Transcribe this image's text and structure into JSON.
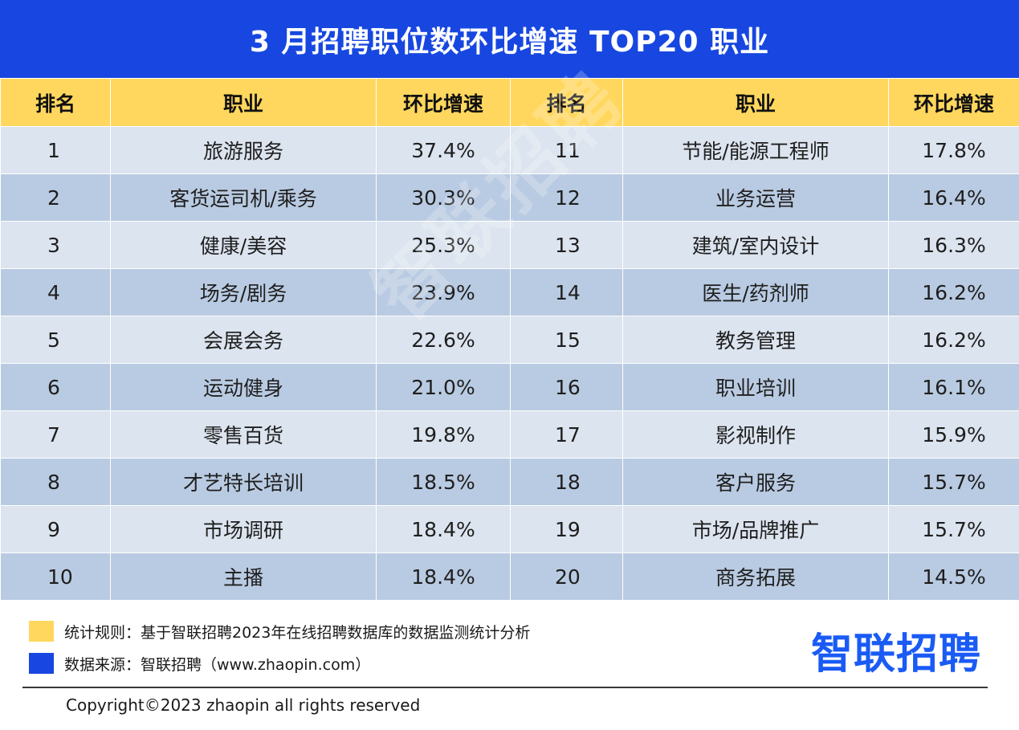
{
  "title": "3 月招聘职位数环比增速 TOP20 职业",
  "table": {
    "headers": [
      "排名",
      "职业",
      "环比增速",
      "排名",
      "职业",
      "环比增速"
    ],
    "rows": [
      {
        "rank_l": "1",
        "job_l": "旅游服务",
        "growth_l": "37.4%",
        "rank_r": "11",
        "job_r": "节能/能源工程师",
        "growth_r": "17.8%"
      },
      {
        "rank_l": "2",
        "job_l": "客货运司机/乘务",
        "growth_l": "30.3%",
        "rank_r": "12",
        "job_r": "业务运营",
        "growth_r": "16.4%"
      },
      {
        "rank_l": "3",
        "job_l": "健康/美容",
        "growth_l": "25.3%",
        "rank_r": "13",
        "job_r": "建筑/室内设计",
        "growth_r": "16.3%"
      },
      {
        "rank_l": "4",
        "job_l": "场务/剧务",
        "growth_l": "23.9%",
        "rank_r": "14",
        "job_r": "医生/药剂师",
        "growth_r": "16.2%"
      },
      {
        "rank_l": "5",
        "job_l": "会展会务",
        "growth_l": "22.6%",
        "rank_r": "15",
        "job_r": "教务管理",
        "growth_r": "16.2%"
      },
      {
        "rank_l": "6",
        "job_l": "运动健身",
        "growth_l": "21.0%",
        "rank_r": "16",
        "job_r": "职业培训",
        "growth_r": "16.1%"
      },
      {
        "rank_l": "7",
        "job_l": "零售百货",
        "growth_l": "19.8%",
        "rank_r": "17",
        "job_r": "影视制作",
        "growth_r": "15.9%"
      },
      {
        "rank_l": "8",
        "job_l": "才艺特长培训",
        "growth_l": "18.5%",
        "rank_r": "18",
        "job_r": "客户服务",
        "growth_r": "15.7%"
      },
      {
        "rank_l": "9",
        "job_l": "市场调研",
        "growth_l": "18.4%",
        "rank_r": "19",
        "job_r": "市场/品牌推广",
        "growth_r": "15.7%"
      },
      {
        "rank_l": "10",
        "job_l": "主播",
        "growth_l": "18.4%",
        "rank_r": "20",
        "job_r": "商务拓展",
        "growth_r": "14.5%"
      }
    ]
  },
  "watermark": "智联招聘",
  "notes": {
    "rule": "统计规则：基于智联招聘2023年在线招聘数据库的数据监测统计分析",
    "source": "数据来源：智联招聘（www.zhaopin.com）"
  },
  "logo": "智联招聘",
  "copyright": "Copyright©2023 zhaopin all rights reserved",
  "colors": {
    "title_bg": "#1747e0",
    "header_bg": "#ffd75e",
    "row_light": "#dce4ef",
    "row_dark": "#b9cbe2",
    "logo": "#1a5bf5"
  }
}
